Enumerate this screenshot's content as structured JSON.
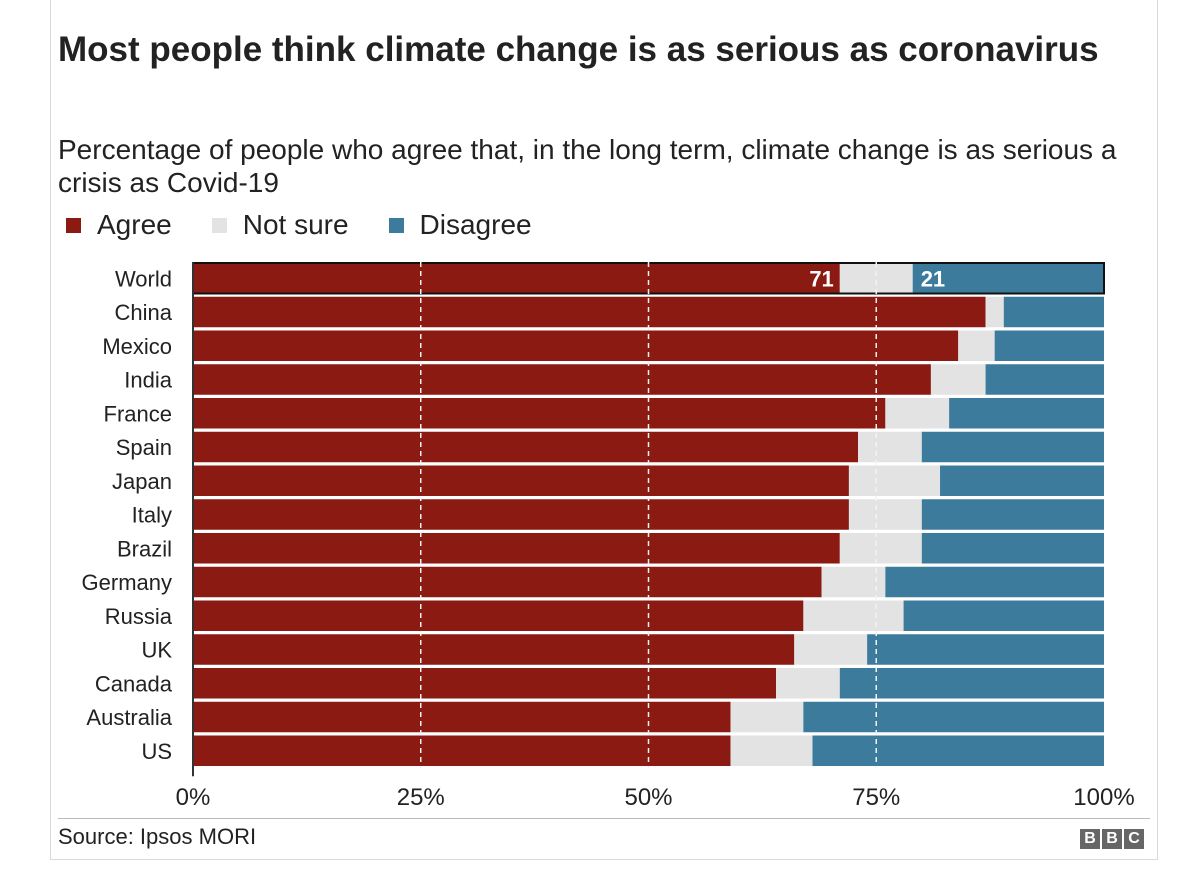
{
  "title": "Most people think climate change is as serious as coronavirus",
  "subtitle": "Percentage of people who agree that, in the long term, climate change is as serious a crisis as Covid-19",
  "source": "Source: Ipsos MORI",
  "logo": {
    "letters": [
      "B",
      "B",
      "C"
    ]
  },
  "colors": {
    "agree": "#8a1a12",
    "not_sure": "#e3e3e3",
    "disagree": "#3d7b9c"
  },
  "chart_data": {
    "type": "bar",
    "orientation": "horizontal",
    "stacked": true,
    "title": "Most people think climate change is as serious as coronavirus",
    "subtitle": "Percentage of people who agree that, in the long term, climate change is as serious a crisis as Covid-19",
    "categories": [
      "World",
      "China",
      "Mexico",
      "India",
      "France",
      "Spain",
      "Japan",
      "Italy",
      "Brazil",
      "Germany",
      "Russia",
      "UK",
      "Canada",
      "Australia",
      "US"
    ],
    "series": [
      {
        "name": "Agree",
        "color": "#8a1a12",
        "values": [
          71,
          87,
          84,
          81,
          76,
          73,
          72,
          72,
          71,
          69,
          67,
          66,
          64,
          59,
          59
        ]
      },
      {
        "name": "Not sure",
        "color": "#e3e3e3",
        "values": [
          8,
          2,
          4,
          6,
          7,
          7,
          10,
          8,
          9,
          7,
          11,
          8,
          7,
          8,
          9
        ]
      },
      {
        "name": "Disagree",
        "color": "#3d7b9c",
        "values": [
          21,
          11,
          12,
          13,
          17,
          20,
          18,
          20,
          20,
          24,
          22,
          26,
          29,
          33,
          32
        ]
      }
    ],
    "data_labels": [
      {
        "category": "World",
        "series": "Agree",
        "text": "71"
      },
      {
        "category": "World",
        "series": "Disagree",
        "text": "21"
      }
    ],
    "xlim": [
      0,
      100
    ],
    "x_ticks": [
      0,
      25,
      50,
      75,
      100
    ],
    "x_tick_labels": [
      "0%",
      "25%",
      "50%",
      "75%",
      "100%"
    ],
    "grid": "dashed vertical lines at 25, 50 and 75",
    "legend": "top-left"
  }
}
